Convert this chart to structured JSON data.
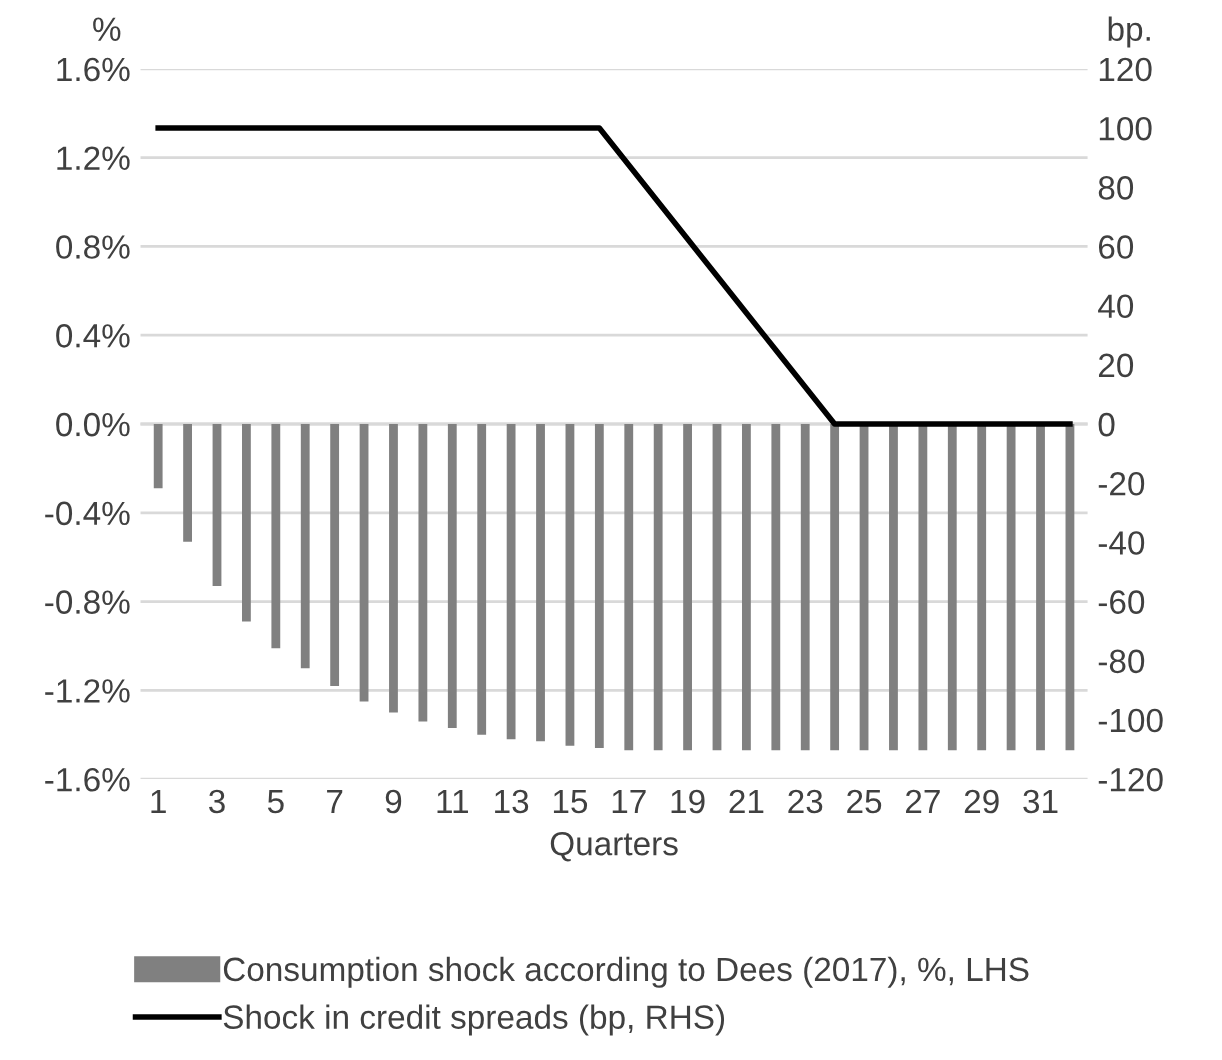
{
  "chart_data": {
    "type": "bar",
    "xlabel": "Quarters",
    "ylabel": "%",
    "y2label": "bp.",
    "categories": [
      "1",
      null,
      "3",
      null,
      "5",
      null,
      "7",
      null,
      "9",
      null,
      "11",
      null,
      "13",
      null,
      "15",
      null,
      "17",
      null,
      "19",
      null,
      "21",
      null,
      "23",
      null,
      "25",
      null,
      "27",
      null,
      "29",
      null,
      "31",
      null
    ],
    "series": [
      {
        "name": "Consumption shock according to Dees (2017), %, LHS",
        "color": "#808080",
        "values": [
          -0.29,
          -0.53,
          -0.73,
          -0.89,
          -1.01,
          -1.1,
          -1.18,
          -1.25,
          -1.3,
          -1.34,
          -1.37,
          -1.4,
          -1.42,
          -1.43,
          -1.45,
          -1.46,
          -1.47,
          -1.47,
          -1.47,
          -1.47,
          -1.47,
          -1.47,
          -1.47,
          -1.47,
          -1.47,
          -1.47,
          -1.47,
          -1.47,
          -1.47,
          -1.47,
          -1.47,
          -1.47
        ]
      },
      {
        "name": "Shock in credit spreads (bp, RHS)",
        "color": "#000000",
        "type": "line",
        "axis": "y2",
        "values": [
          100,
          100,
          100,
          100,
          100,
          100,
          100,
          100,
          100,
          100,
          100,
          100,
          100,
          100,
          100,
          100,
          87.5,
          75,
          62.5,
          50,
          37.5,
          25,
          12.5,
          0,
          0,
          0,
          0,
          0,
          0,
          0,
          0,
          0
        ]
      }
    ],
    "ylim": [
      -1.6,
      1.6
    ],
    "yticks": [
      {
        "value": -1.6,
        "label": "-1.6%"
      },
      {
        "value": -1.2,
        "label": "-1.2%"
      },
      {
        "value": -0.8,
        "label": "-0.8%"
      },
      {
        "value": -0.4,
        "label": "-0.4%"
      },
      {
        "value": 0,
        "label": "0.0%"
      },
      {
        "value": 0.4,
        "label": "0.4%"
      },
      {
        "value": 0.8,
        "label": "0.8%"
      },
      {
        "value": 1.2,
        "label": "1.2%"
      },
      {
        "value": 1.6,
        "label": "1.6%"
      }
    ],
    "y2lim": [
      -120,
      120
    ],
    "y2ticks": [
      -120,
      -100,
      -80,
      -60,
      -40,
      -20,
      0,
      20,
      40,
      60,
      80,
      100,
      120
    ],
    "grid": "y",
    "legend": "bottom",
    "marker": "none",
    "line_style": "solid"
  }
}
